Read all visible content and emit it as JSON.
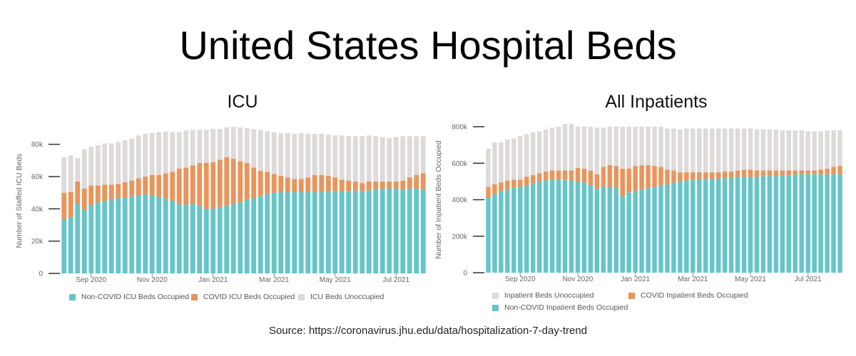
{
  "title": "United States Hospital Beds",
  "source": "Source: https://coronavirus.jhu.edu/data/hospitalization-7-day-trend",
  "colors": {
    "non_covid": "#66c5c7",
    "covid": "#e8955c",
    "unoccupied": "#dedada",
    "axis": "#333333"
  },
  "chart_data": [
    {
      "type": "bar",
      "stacked": true,
      "title": "ICU",
      "xlabel": "",
      "ylabel": "Number of Staffed ICU Beds",
      "ylim": [
        0,
        90000
      ],
      "yticks": [
        0,
        20000,
        40000,
        60000,
        80000
      ],
      "ytick_labels": [
        "0",
        "20k",
        "40k",
        "60k",
        "80k"
      ],
      "xticks": [
        {
          "index": 4,
          "label": "Sep 2020"
        },
        {
          "index": 13,
          "label": "Nov 2020"
        },
        {
          "index": 22,
          "label": "Jan 2021"
        },
        {
          "index": 31,
          "label": "Mar 2021"
        },
        {
          "index": 40,
          "label": "May 2021"
        },
        {
          "index": 49,
          "label": "Jul 2021"
        }
      ],
      "legend": [
        {
          "label": "Non-COVID ICU Beds Occupied",
          "series": 0
        },
        {
          "label": "COVID ICU Beds Occupied",
          "series": 1
        },
        {
          "label": "ICU Beds Unoccupied",
          "series": 2
        }
      ],
      "series": [
        {
          "name": "Non-COVID ICU Beds Occupied",
          "values": [
            33500,
            35000,
            43000,
            39500,
            42500,
            44000,
            45000,
            46000,
            46500,
            47000,
            47500,
            48500,
            49000,
            48500,
            47500,
            46500,
            45000,
            43000,
            42500,
            43000,
            42000,
            40000,
            40000,
            41000,
            42000,
            43000,
            44000,
            45500,
            46500,
            48000,
            49500,
            50000,
            50500,
            50500,
            50500,
            50500,
            50500,
            50500,
            50500,
            51000,
            51000,
            51000,
            51000,
            51500,
            51000,
            51500,
            52000,
            52500,
            52500,
            52500,
            52000,
            52500,
            52500,
            52000
          ]
        },
        {
          "name": "COVID ICU Beds Occupied",
          "values": [
            16500,
            15500,
            14000,
            13000,
            12000,
            10500,
            10000,
            9000,
            9000,
            9500,
            10000,
            10500,
            11000,
            12500,
            13500,
            15500,
            18000,
            22000,
            23000,
            24000,
            26500,
            28500,
            29000,
            29500,
            30000,
            28000,
            25500,
            23000,
            19000,
            15500,
            13500,
            11500,
            10000,
            9000,
            8000,
            8000,
            9000,
            10500,
            10500,
            9500,
            8500,
            7000,
            6500,
            5500,
            5000,
            5500,
            5000,
            4500,
            4500,
            4500,
            5500,
            7000,
            8500,
            10000
          ]
        },
        {
          "name": "ICU Beds Unoccupied",
          "values": [
            22000,
            22500,
            14500,
            24500,
            24000,
            25000,
            25500,
            25500,
            26000,
            26000,
            26000,
            26500,
            26500,
            26000,
            26500,
            26000,
            24500,
            22500,
            23000,
            22000,
            20500,
            20500,
            20500,
            19000,
            18500,
            20000,
            21000,
            21500,
            24000,
            25500,
            25000,
            26000,
            26500,
            27500,
            28000,
            28500,
            27000,
            25500,
            25500,
            25500,
            26000,
            27500,
            27500,
            28000,
            29000,
            28500,
            28000,
            27500,
            27000,
            27500,
            27500,
            25500,
            24000,
            23000
          ]
        }
      ]
    },
    {
      "type": "bar",
      "stacked": true,
      "title": "All Inpatients",
      "xlabel": "",
      "ylabel": "Number of Inpatient Beds Occupied",
      "ylim": [
        0,
        800000
      ],
      "yticks": [
        0,
        200000,
        400000,
        600000,
        800000
      ],
      "ytick_labels": [
        "0",
        "200k",
        "400k",
        "600k",
        "800k"
      ],
      "xticks": [
        {
          "index": 5,
          "label": "Sep 2020"
        },
        {
          "index": 14,
          "label": "Nov 2020"
        },
        {
          "index": 23,
          "label": "Jan 2021"
        },
        {
          "index": 32,
          "label": "Mar 2021"
        },
        {
          "index": 41,
          "label": "May 2021"
        },
        {
          "index": 50,
          "label": "Jul 2021"
        }
      ],
      "legend": [
        {
          "label": "Inpatient Beds Unoccupied",
          "series": 2
        },
        {
          "label": "COVID Inpatient Beds Occupied",
          "series": 1
        },
        {
          "label": "Non-COVID Inpatient Beds Occupied",
          "series": 0
        }
      ],
      "series": [
        {
          "name": "Non-COVID Inpatient Beds Occupied",
          "values": [
            410000,
            430000,
            445000,
            455000,
            465000,
            470000,
            480000,
            490000,
            500000,
            505000,
            510000,
            510000,
            510000,
            505000,
            500000,
            495000,
            480000,
            460000,
            470000,
            470000,
            465000,
            420000,
            440000,
            450000,
            455000,
            465000,
            470000,
            480000,
            485000,
            495000,
            500000,
            505000,
            510000,
            510000,
            515000,
            515000,
            515000,
            520000,
            520000,
            525000,
            525000,
            525000,
            525000,
            530000,
            530000,
            530000,
            535000,
            535000,
            540000,
            540000,
            540000,
            540000,
            540000,
            540000,
            540000,
            540000
          ]
        },
        {
          "name": "COVID Inpatient Beds Occupied",
          "values": [
            60000,
            55000,
            50000,
            50000,
            45000,
            40000,
            45000,
            45000,
            45000,
            50000,
            50000,
            50000,
            50000,
            55000,
            75000,
            75000,
            80000,
            80000,
            110000,
            120000,
            120000,
            150000,
            130000,
            135000,
            135000,
            125000,
            115000,
            100000,
            80000,
            65000,
            50000,
            45000,
            40000,
            40000,
            35000,
            35000,
            35000,
            35000,
            35000,
            35000,
            40000,
            40000,
            35000,
            30000,
            30000,
            30000,
            25000,
            25000,
            20000,
            20000,
            20000,
            20000,
            25000,
            30000,
            40000,
            45000
          ]
        },
        {
          "name": "Inpatient Beds Unoccupied",
          "values": [
            210000,
            230000,
            220000,
            225000,
            225000,
            240000,
            235000,
            235000,
            230000,
            230000,
            235000,
            240000,
            255000,
            255000,
            225000,
            230000,
            240000,
            255000,
            215000,
            210000,
            215000,
            230000,
            230000,
            215000,
            210000,
            210000,
            215000,
            220000,
            225000,
            230000,
            235000,
            240000,
            240000,
            240000,
            240000,
            240000,
            240000,
            235000,
            235000,
            230000,
            225000,
            225000,
            225000,
            225000,
            225000,
            225000,
            220000,
            220000,
            220000,
            220000,
            215000,
            215000,
            210000,
            210000,
            200000,
            195000
          ]
        }
      ]
    }
  ]
}
